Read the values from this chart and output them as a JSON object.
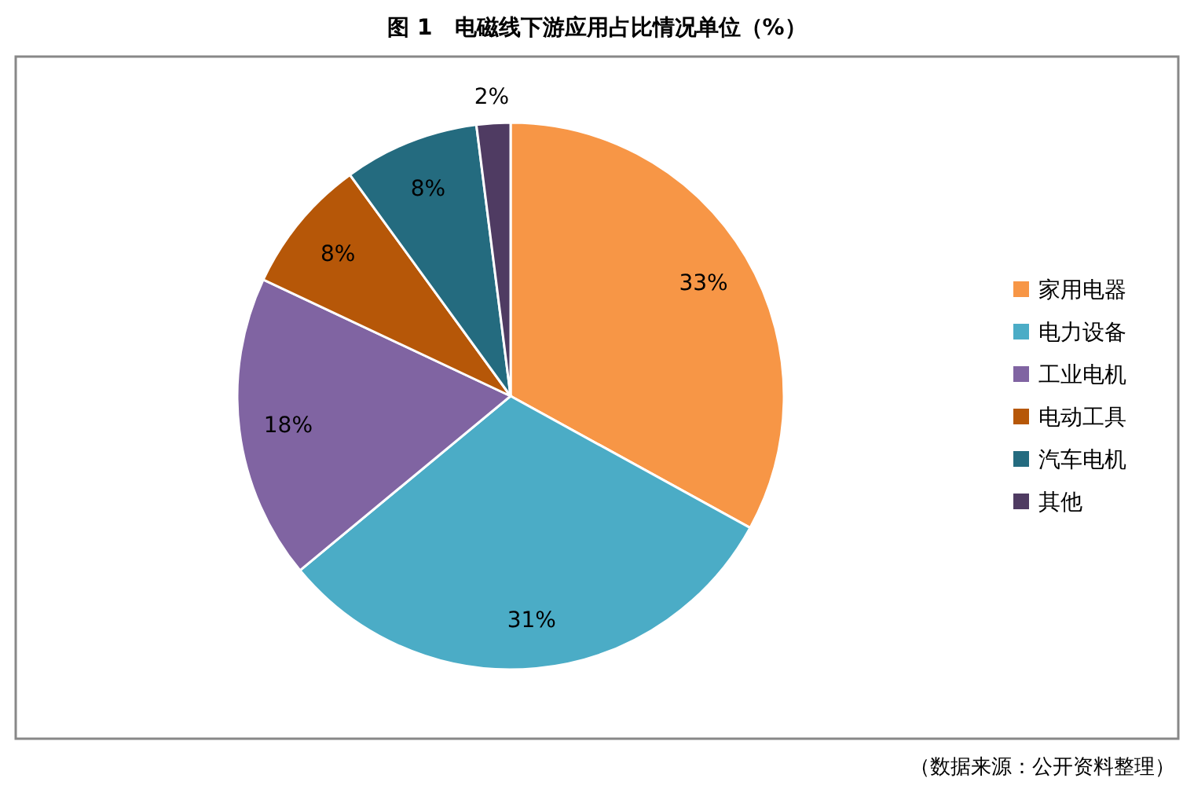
{
  "chart_data": {
    "type": "pie",
    "title": "图 1　电磁线下游应用占比情况单位（%）",
    "categories": [
      "家用电器",
      "电力设备",
      "工业电机",
      "电动工具",
      "汽车电机",
      "其他"
    ],
    "values": [
      33,
      31,
      18,
      8,
      8,
      2
    ],
    "colors": [
      "#f79646",
      "#4bacc6",
      "#8064a2",
      "#b65708",
      "#246b7f",
      "#4f3b62"
    ],
    "value_labels": [
      "33%",
      "31%",
      "18%",
      "8%",
      "8%",
      "2%"
    ],
    "legend": "right",
    "annotations": [
      "（数据来源：公开资料整理）"
    ]
  }
}
